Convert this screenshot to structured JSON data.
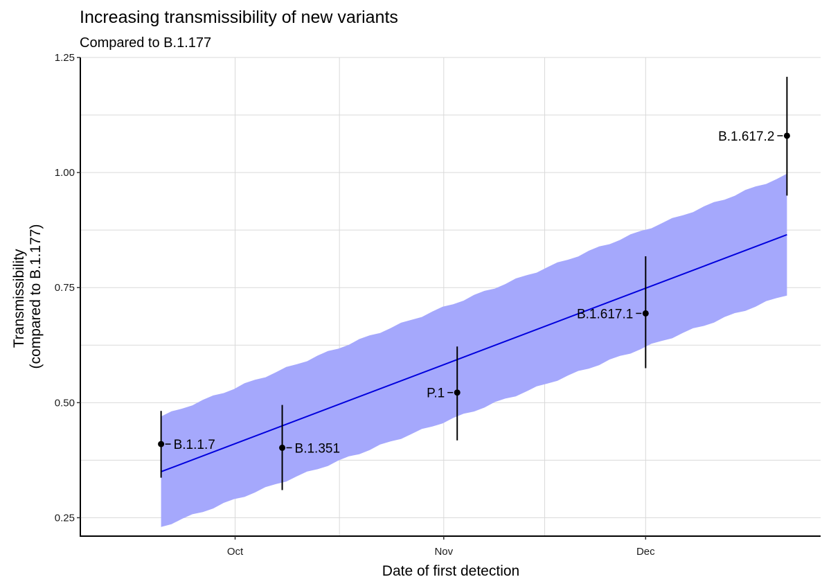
{
  "chart_data": {
    "type": "line",
    "title": "Increasing transmissibility of new variants",
    "subtitle": "Compared to B.1.177",
    "xlabel": "Date of first detection",
    "ylabel": [
      "Transmissibility",
      "(compared to B.1.177)"
    ],
    "xlim": [
      "2020-09-08",
      "2020-12-27"
    ],
    "ylim": [
      0.21,
      1.25
    ],
    "x_ticks": [
      {
        "date": "2020-10-01",
        "label": "Oct"
      },
      {
        "date": "2020-11-01",
        "label": "Nov"
      },
      {
        "date": "2020-12-01",
        "label": "Dec"
      }
    ],
    "y_ticks": [
      {
        "value": 0.25,
        "label": "0.25"
      },
      {
        "value": 0.5,
        "label": "0.50"
      },
      {
        "value": 0.75,
        "label": "0.75"
      },
      {
        "value": 1.0,
        "label": "1.00"
      },
      {
        "value": 1.25,
        "label": "1.25"
      }
    ],
    "grid": true,
    "fit": {
      "color": "#0000dd",
      "band_color": "#a5a8fc",
      "x": [
        "2020-09-20",
        "2020-12-22"
      ],
      "y": [
        0.35,
        0.865
      ],
      "lower": [
        0.23,
        0.735
      ],
      "upper": [
        0.47,
        0.995
      ]
    },
    "points": [
      {
        "label": "B.1.1.7",
        "x": "2020-09-20",
        "y": 0.41,
        "ymin": 0.337,
        "ymax": 0.482,
        "label_side": "right"
      },
      {
        "label": "B.1.351",
        "x": "2020-10-08",
        "y": 0.402,
        "ymin": 0.31,
        "ymax": 0.495,
        "label_side": "right"
      },
      {
        "label": "P.1",
        "x": "2020-11-03",
        "y": 0.522,
        "ymin": 0.418,
        "ymax": 0.622,
        "label_side": "left"
      },
      {
        "label": "B.1.617.1",
        "x": "2020-12-01",
        "y": 0.694,
        "ymin": 0.575,
        "ymax": 0.818,
        "label_side": "left"
      },
      {
        "label": "B.1.617.2",
        "x": "2020-12-22",
        "y": 1.08,
        "ymin": 0.95,
        "ymax": 1.208,
        "label_side": "left"
      }
    ]
  }
}
